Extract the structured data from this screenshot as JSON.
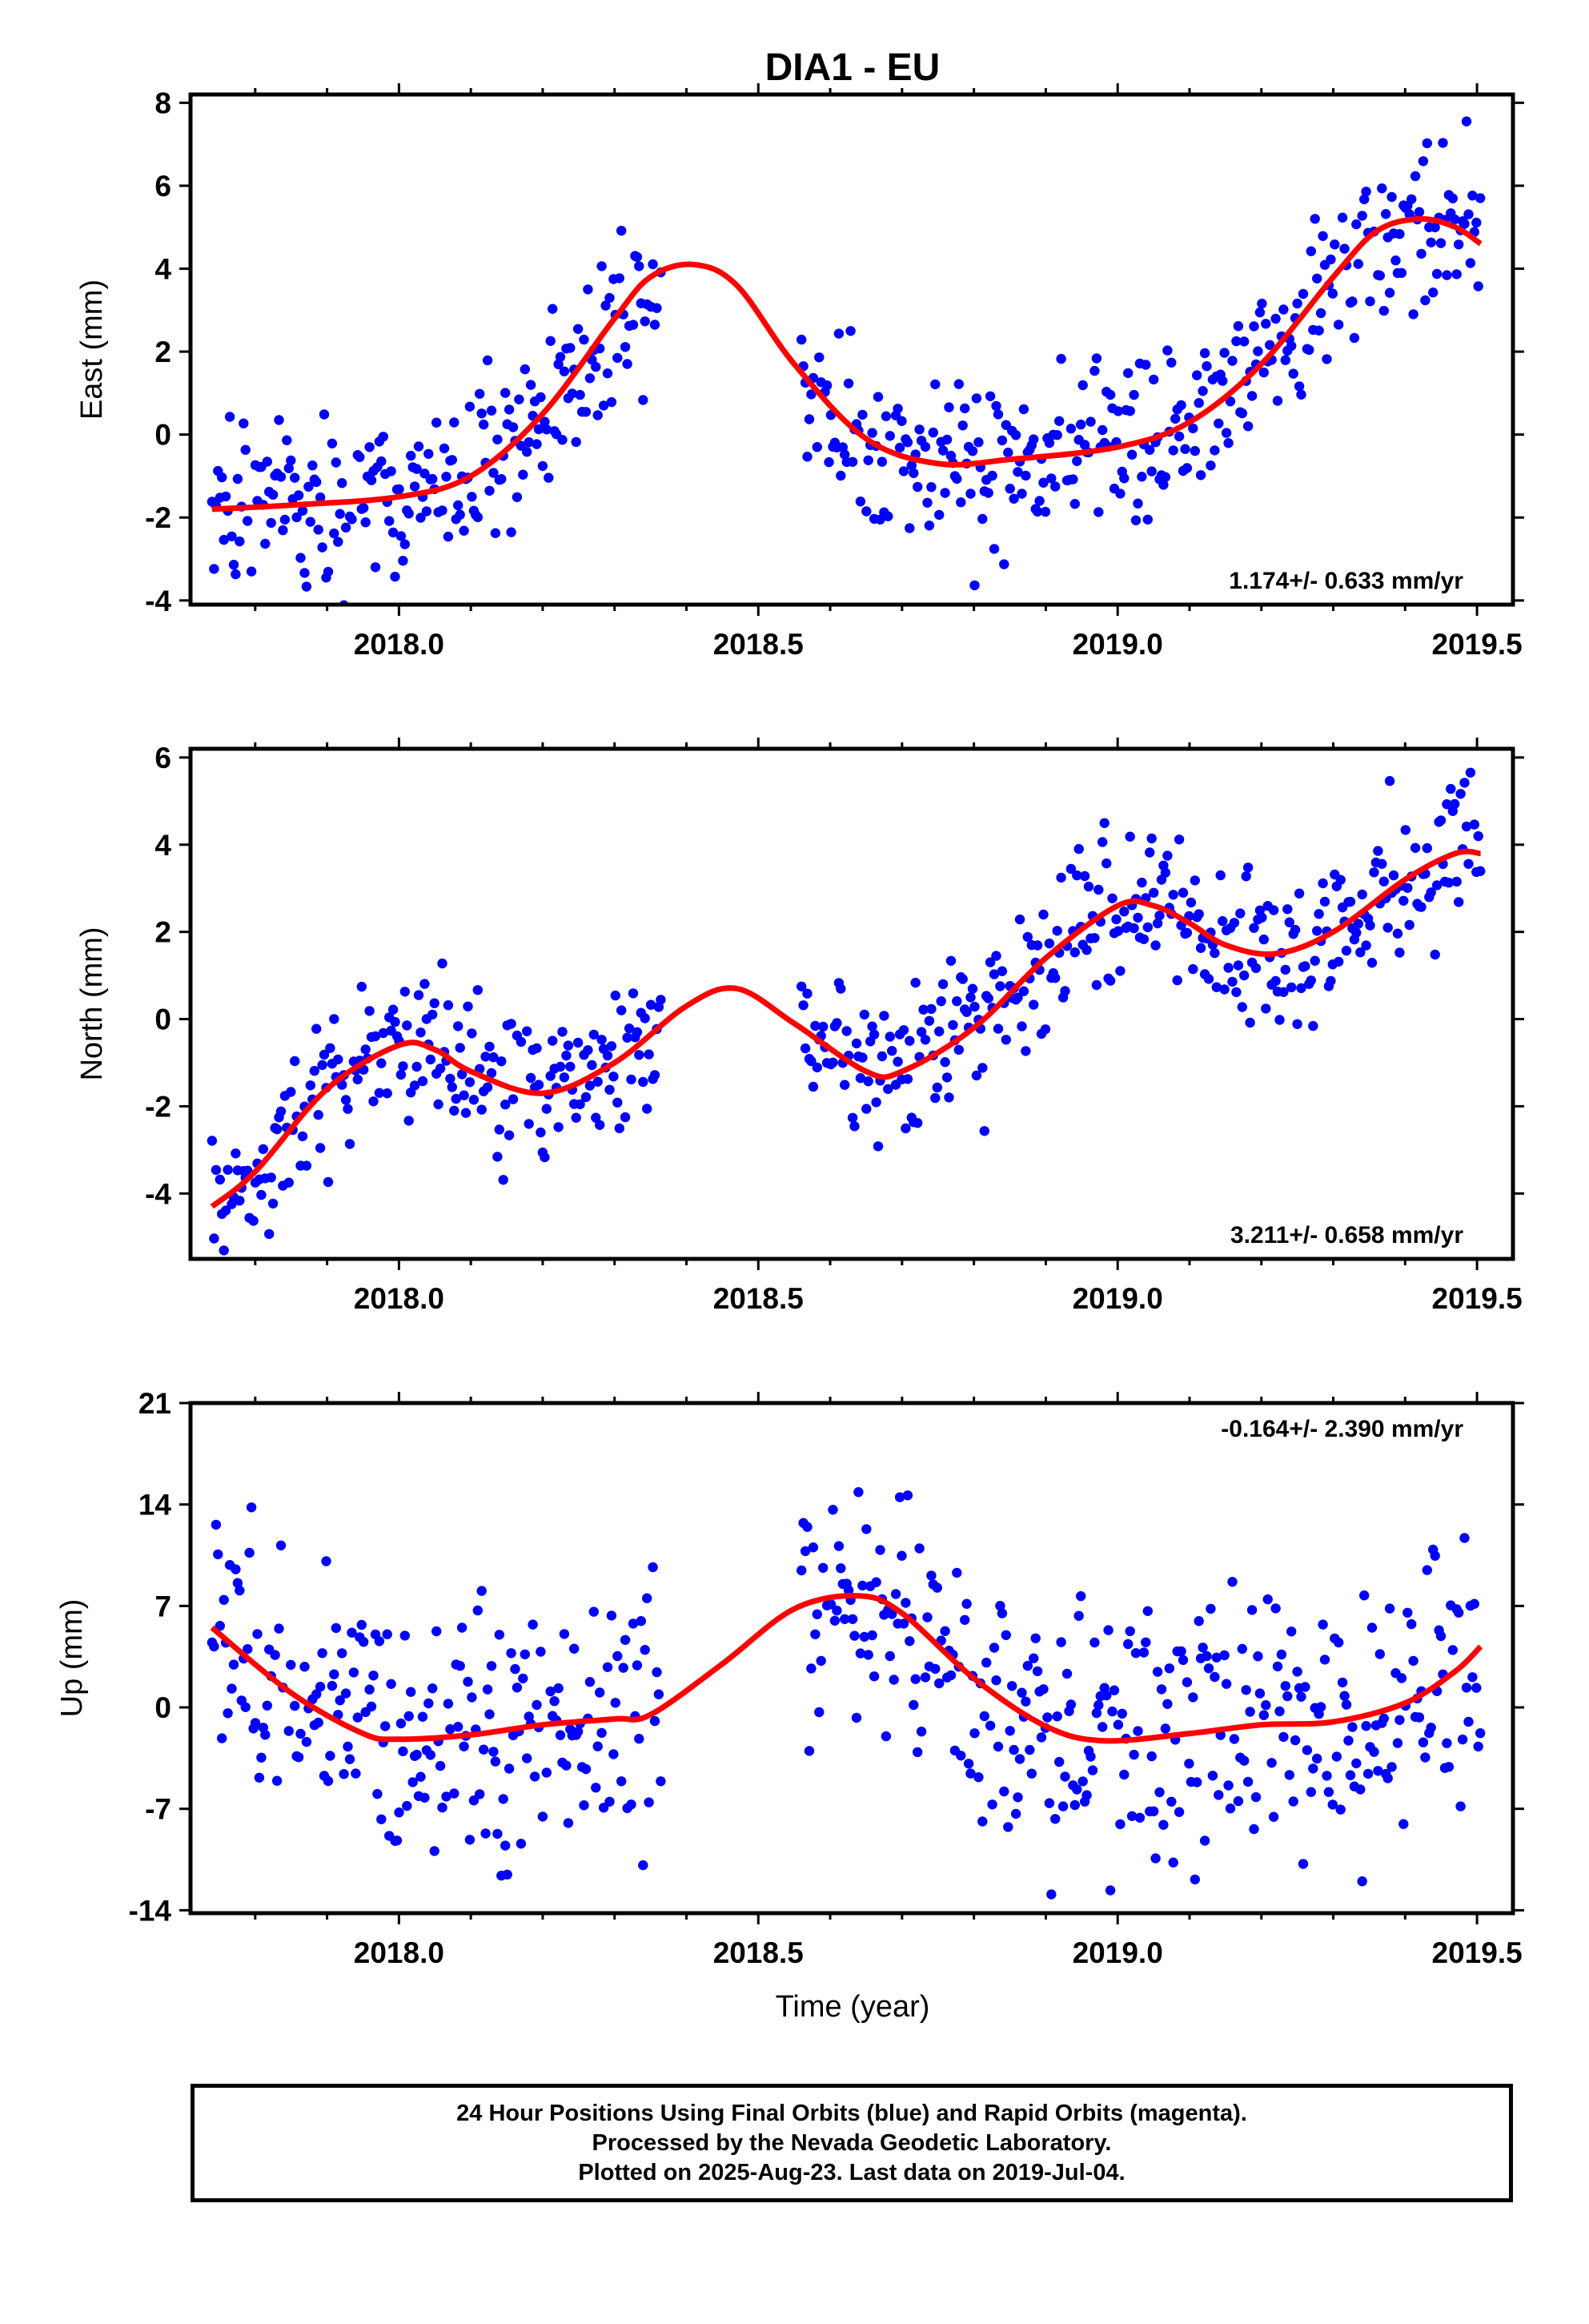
{
  "title": "DIA1 - EU",
  "colors": {
    "final_orbits": "#0000ff",
    "fit_line": "#ff0000",
    "frame": "#000000"
  },
  "footer": {
    "line1": "24 Hour Positions Using Final Orbits (blue) and Rapid Orbits (magenta).",
    "line2": "Processed by the Nevada Geodetic Laboratory.",
    "line3": "Plotted on 2025-Aug-23. Last data on 2019-Jul-04."
  },
  "chart_data": [
    {
      "type": "scatter",
      "ylabel": "East (mm)",
      "xlim": [
        2017.71,
        2019.55
      ],
      "ylim": [
        -4.1,
        8.2
      ],
      "xticks": [
        "2018.0",
        "2018.5",
        "2019.0",
        "2019.5"
      ],
      "yticks": [
        "-4",
        "-2",
        "0",
        "2",
        "4",
        "6",
        "8"
      ],
      "rate": "1.174+/- 0.633 mm/yr",
      "rate_position": "bottom-right",
      "series": [
        {
          "kind": "points",
          "noise": 1.0,
          "segments": [
            [
              2017.74,
              2018.365
            ],
            [
              2018.56,
              2019.505
            ]
          ]
        },
        {
          "kind": "fit-line",
          "x": [
            2017.74,
            2017.85,
            2018.0,
            2018.1,
            2018.2,
            2018.3,
            2018.35,
            2018.41,
            2018.47,
            2018.55,
            2018.65,
            2018.75,
            2018.85,
            2019.0,
            2019.1,
            2019.2,
            2019.3,
            2019.36,
            2019.42,
            2019.47,
            2019.505
          ],
          "y": [
            -1.8,
            -1.7,
            -1.5,
            -1.0,
            0.5,
            2.8,
            3.8,
            4.1,
            3.6,
            1.7,
            -0.1,
            -0.7,
            -0.6,
            -0.3,
            0.3,
            1.7,
            3.8,
            4.9,
            5.2,
            5.0,
            4.6
          ]
        }
      ]
    },
    {
      "type": "scatter",
      "ylabel": "North (mm)",
      "xlim": [
        2017.71,
        2019.55
      ],
      "ylim": [
        -5.5,
        6.2
      ],
      "xticks": [
        "2018.0",
        "2018.5",
        "2019.0",
        "2019.5"
      ],
      "yticks": [
        "-4",
        "-2",
        "0",
        "2",
        "4",
        "6"
      ],
      "rate": "3.211+/- 0.658 mm/yr",
      "rate_position": "bottom-right",
      "series": [
        {
          "kind": "points",
          "noise": 0.9,
          "segments": [
            [
              2017.74,
              2018.365
            ],
            [
              2018.56,
              2019.505
            ]
          ]
        },
        {
          "kind": "fit-line",
          "x": [
            2017.74,
            2017.8,
            2017.9,
            2018.0,
            2018.05,
            2018.1,
            2018.2,
            2018.3,
            2018.4,
            2018.47,
            2018.55,
            2018.65,
            2018.7,
            2018.8,
            2018.9,
            2019.0,
            2019.05,
            2019.1,
            2019.15,
            2019.22,
            2019.3,
            2019.4,
            2019.47,
            2019.505
          ],
          "y": [
            -4.3,
            -3.5,
            -1.6,
            -0.6,
            -0.7,
            -1.2,
            -1.7,
            -1.0,
            0.3,
            0.7,
            -0.1,
            -1.2,
            -1.2,
            -0.2,
            1.4,
            2.6,
            2.6,
            2.2,
            1.7,
            1.5,
            2.0,
            3.2,
            3.8,
            3.8
          ]
        }
      ]
    },
    {
      "type": "scatter",
      "ylabel": "Up (mm)",
      "xlabel": "Time (year)",
      "xlim": [
        2017.71,
        2019.55
      ],
      "ylim": [
        -14.2,
        21.0
      ],
      "xticks": [
        "2018.0",
        "2018.5",
        "2019.0",
        "2019.5"
      ],
      "yticks": [
        "-14",
        "-7",
        "0",
        "7",
        "14",
        "21"
      ],
      "rate": "-0.164+/- 2.390 mm/yr",
      "rate_position": "top-right",
      "series": [
        {
          "kind": "points",
          "noise": 4.5,
          "segments": [
            [
              2017.74,
              2018.365
            ],
            [
              2018.56,
              2019.505
            ]
          ]
        },
        {
          "kind": "fit-line",
          "x": [
            2017.74,
            2017.85,
            2017.95,
            2018.0,
            2018.1,
            2018.2,
            2018.3,
            2018.35,
            2018.45,
            2018.55,
            2018.64,
            2018.7,
            2018.8,
            2018.9,
            2018.98,
            2019.1,
            2019.2,
            2019.3,
            2019.4,
            2019.47,
            2019.505
          ],
          "y": [
            5.5,
            1.0,
            -1.8,
            -2.2,
            -1.9,
            -1.2,
            -0.8,
            -0.5,
            3.0,
            6.8,
            7.7,
            6.5,
            2.0,
            -1.3,
            -2.3,
            -1.8,
            -1.2,
            -1.0,
            0.3,
            2.5,
            4.2
          ]
        }
      ]
    }
  ]
}
